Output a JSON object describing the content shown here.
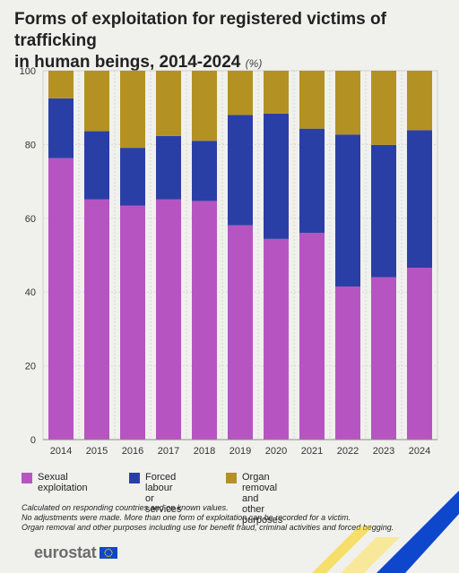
{
  "header": {
    "title_line1": "Forms of exploitation for registered victims of trafficking",
    "title_line2": "in human beings, 2014-2024",
    "unit": "(%)"
  },
  "legend": [
    {
      "lines": [
        "Sexual exploitation"
      ],
      "color": "#b655c1"
    },
    {
      "lines": [
        "Forced labour",
        "or services"
      ],
      "color": "#2a3fa6"
    },
    {
      "lines": [
        "Organ removal",
        "and other purposes"
      ],
      "color": "#b39223"
    }
  ],
  "notes": [
    "Calculated on responding countries and on known values.",
    "No adjustments were made. More than one form of exploitation can be recorded for a victim.",
    "Organ removal and other purposes including use for benefit fraud, criminal activities and forced begging."
  ],
  "footer": {
    "logo_text": "eurostat"
  },
  "chart_data": {
    "type": "bar",
    "stacked": true,
    "categories": [
      "2014",
      "2015",
      "2016",
      "2017",
      "2018",
      "2019",
      "2020",
      "2021",
      "2022",
      "2023",
      "2024"
    ],
    "series": [
      {
        "name": "Sexual exploitation",
        "color": "#b655c1",
        "values": [
          76.3,
          65.1,
          63.4,
          65.1,
          64.7,
          58.1,
          54.4,
          56.0,
          41.5,
          44.0,
          46.6
        ]
      },
      {
        "name": "Forced labour or services",
        "color": "#2a3fa6",
        "values": [
          16.2,
          18.5,
          15.7,
          17.2,
          16.3,
          29.9,
          34.0,
          28.3,
          41.2,
          35.9,
          37.3
        ]
      },
      {
        "name": "Organ removal and other purposes",
        "color": "#b39223",
        "values": [
          7.5,
          16.4,
          20.9,
          17.7,
          19.0,
          12.0,
          11.6,
          15.7,
          17.3,
          20.1,
          16.1
        ]
      }
    ],
    "yticks": [
      0,
      20,
      40,
      60,
      80,
      100
    ],
    "ylim": [
      0,
      100
    ],
    "grid": true
  }
}
